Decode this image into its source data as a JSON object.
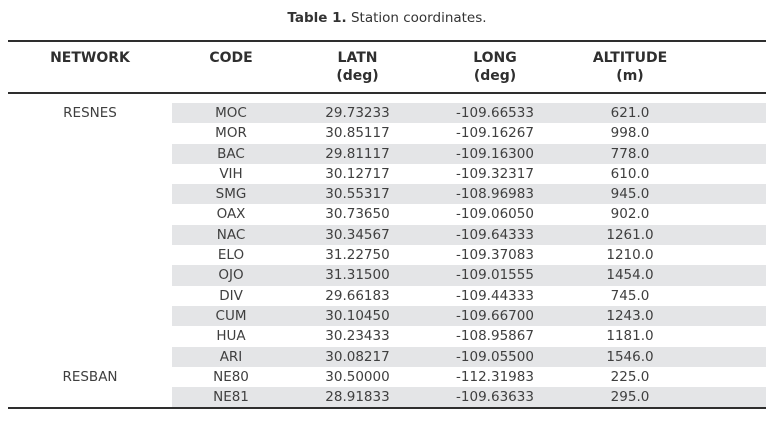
{
  "title": {
    "label": "Table 1.",
    "caption": "Station coordinates."
  },
  "table": {
    "columns": [
      {
        "key": "network",
        "label": "NETWORK",
        "unit": ""
      },
      {
        "key": "code",
        "label": "CODE",
        "unit": ""
      },
      {
        "key": "latn",
        "label": "LATN",
        "unit": "(deg)"
      },
      {
        "key": "long",
        "label": "LONG",
        "unit": "(deg)"
      },
      {
        "key": "altitude",
        "label": "ALTITUDE",
        "unit": "(m)"
      }
    ],
    "rows": [
      {
        "network": "RESNES",
        "code": "MOC",
        "latn": "29.73233",
        "long": "-109.66533",
        "altitude": "621.0"
      },
      {
        "network": "",
        "code": "MOR",
        "latn": "30.85117",
        "long": "-109.16267",
        "altitude": "998.0"
      },
      {
        "network": "",
        "code": "BAC",
        "latn": "29.81117",
        "long": "-109.16300",
        "altitude": "778.0"
      },
      {
        "network": "",
        "code": "VIH",
        "latn": "30.12717",
        "long": "-109.32317",
        "altitude": "610.0"
      },
      {
        "network": "",
        "code": "SMG",
        "latn": "30.55317",
        "long": "-108.96983",
        "altitude": "945.0"
      },
      {
        "network": "",
        "code": "OAX",
        "latn": "30.73650",
        "long": "-109.06050",
        "altitude": "902.0"
      },
      {
        "network": "",
        "code": "NAC",
        "latn": "30.34567",
        "long": "-109.64333",
        "altitude": "1261.0"
      },
      {
        "network": "",
        "code": "ELO",
        "latn": "31.22750",
        "long": "-109.37083",
        "altitude": "1210.0"
      },
      {
        "network": "",
        "code": "OJO",
        "latn": "31.31500",
        "long": "-109.01555",
        "altitude": "1454.0"
      },
      {
        "network": "",
        "code": "DIV",
        "latn": "29.66183",
        "long": "-109.44333",
        "altitude": "745.0"
      },
      {
        "network": "",
        "code": "CUM",
        "latn": "30.10450",
        "long": "-109.66700",
        "altitude": "1243.0"
      },
      {
        "network": "",
        "code": "HUA",
        "latn": "30.23433",
        "long": "-108.95867",
        "altitude": "1181.0"
      },
      {
        "network": "",
        "code": "ARI",
        "latn": "30.08217",
        "long": "-109.05500",
        "altitude": "1546.0"
      },
      {
        "network": "RESBAN",
        "code": "NE80",
        "latn": "30.50000",
        "long": "-112.31983",
        "altitude": "225.0"
      },
      {
        "network": "",
        "code": "NE81",
        "latn": "28.91833",
        "long": "-109.63633",
        "altitude": "295.0"
      }
    ]
  },
  "colors": {
    "stripe": "#e4e5e7",
    "rule": "#2e2e2e",
    "text": "#3f3f3f"
  }
}
